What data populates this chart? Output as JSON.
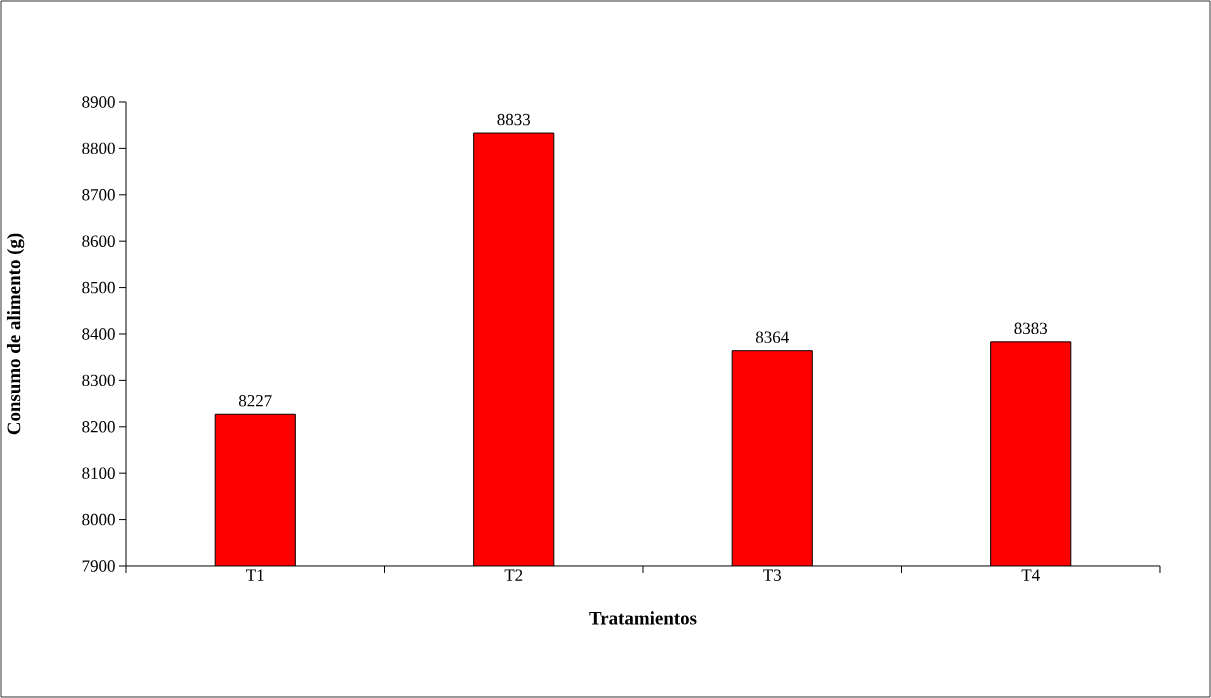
{
  "chart_data": {
    "type": "bar",
    "xlabel": "Tratamientos",
    "ylabel": "Consumo de alimento (g)",
    "categories": [
      "T1",
      "T2",
      "T3",
      "T4"
    ],
    "values": [
      8227,
      8833,
      8364,
      8383
    ],
    "color": "#ff0000",
    "ylim": [
      7900,
      8900
    ],
    "yticks": [
      7900,
      8000,
      8100,
      8200,
      8300,
      8400,
      8500,
      8600,
      8700,
      8800,
      8900
    ],
    "data_labels": true,
    "grid": false
  }
}
